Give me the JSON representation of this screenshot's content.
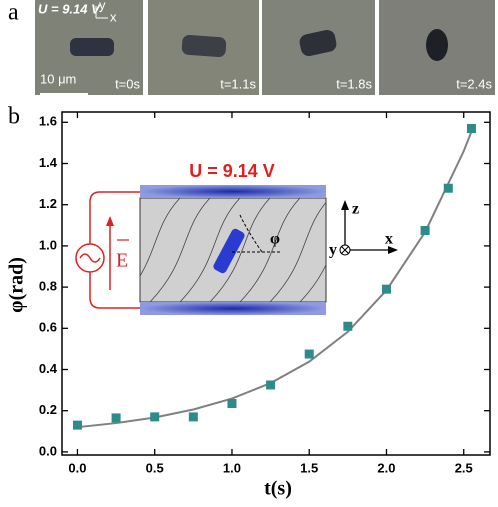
{
  "panel_a": {
    "label": "a",
    "voltage": "U = 9.14 V",
    "axis_y": "y",
    "axis_x": "x",
    "scale": "10 μm",
    "frames": [
      "t=0s",
      "t=1.1s",
      "t=1.8s",
      "t=2.4s"
    ]
  },
  "inset": {
    "voltage": "U = 9.14 V",
    "field": "E",
    "angle": "φ",
    "z": "z",
    "x": "x",
    "y": "y"
  },
  "chart_data": {
    "type": "scatter",
    "label": "b",
    "xlabel": "t(s)",
    "ylabel": "φ(rad)",
    "xlim": [
      -0.1,
      2.67
    ],
    "ylim": [
      -0.015,
      1.65
    ],
    "xticks": [
      {
        "value": 0,
        "label": "0.0"
      },
      {
        "value": 0.5,
        "label": "0.5"
      },
      {
        "value": 1,
        "label": "1.0"
      },
      {
        "value": 1.5,
        "label": "1.5"
      },
      {
        "value": 2,
        "label": "2.0"
      },
      {
        "value": 2.5,
        "label": "2.5"
      }
    ],
    "yticks": [
      {
        "value": 0,
        "label": "0.0"
      },
      {
        "value": 0.2,
        "label": "0.2"
      },
      {
        "value": 0.4,
        "label": "0.4"
      },
      {
        "value": 0.6,
        "label": "0.6"
      },
      {
        "value": 0.8,
        "label": "0.8"
      },
      {
        "value": 1,
        "label": "1.0"
      },
      {
        "value": 1.2,
        "label": "1.2"
      },
      {
        "value": 1.4,
        "label": "1.4"
      },
      {
        "value": 1.6,
        "label": "1.6"
      }
    ],
    "series": [
      {
        "kind": "points",
        "color": "#2b8c8a",
        "x": [
          0,
          0.25,
          0.5,
          0.75,
          1.0,
          1.25,
          1.5,
          1.75,
          2.0,
          2.25,
          2.4,
          2.55
        ],
        "values": [
          0.13,
          0.165,
          0.17,
          0.17,
          0.235,
          0.325,
          0.475,
          0.61,
          0.79,
          1.075,
          1.28,
          1.57
        ]
      },
      {
        "kind": "line",
        "color": "#808080",
        "x": [
          0,
          0.25,
          0.5,
          0.75,
          1.0,
          1.25,
          1.5,
          1.75,
          2.0,
          2.25,
          2.5,
          2.55
        ],
        "values": [
          0.12,
          0.14,
          0.167,
          0.206,
          0.259,
          0.334,
          0.438,
          0.583,
          0.785,
          1.067,
          1.46,
          1.555
        ]
      }
    ]
  }
}
